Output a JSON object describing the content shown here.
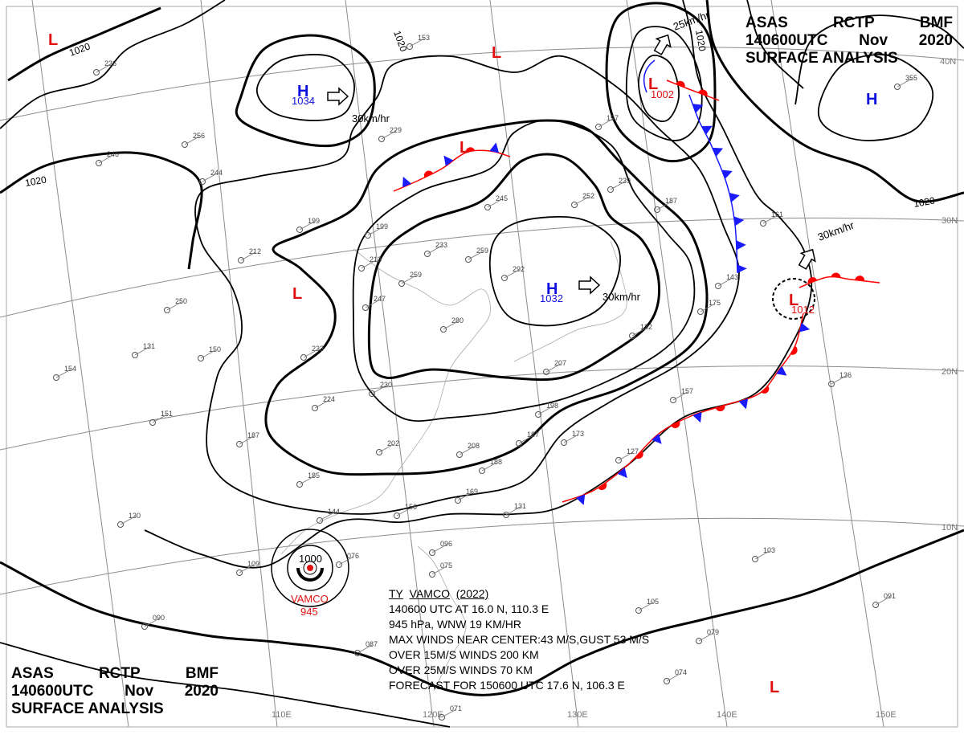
{
  "title": {
    "agency": "ASAS",
    "station": "RCTP",
    "office": "BMF",
    "time": "140600UTC",
    "month": "Nov",
    "year": "2020",
    "product": "SURFACE ANALYSIS"
  },
  "typhoon": {
    "name_line": [
      "TY",
      "VAMCO",
      "(2022)"
    ],
    "position_line": "140600 UTC  AT 16.0 N, 110.3 E",
    "pressure_line": "945 hPa, WNW 19 KM/HR",
    "max_winds_line": "MAX WINDS NEAR CENTER:43 M/S,GUST 53 M/S",
    "r15_line": "OVER 15M/S WINDS 200 KM",
    "r25_line": "OVER 25M/S WINDS 70 KM",
    "forecast_line": "FORECAST FOR 150600 UTC 17.6 N, 106.3 E",
    "map_label": "VAMCO",
    "map_pressure": "945",
    "isobar_label": "1000"
  },
  "pressure_centers": [
    {
      "type": "H",
      "value": "1034"
    },
    {
      "type": "H",
      "value": "1032"
    },
    {
      "type": "H",
      "value": ""
    },
    {
      "type": "L",
      "value": "1002"
    },
    {
      "type": "L",
      "value": "1012"
    },
    {
      "type": "L",
      "value": ""
    },
    {
      "type": "L",
      "value": ""
    },
    {
      "type": "L",
      "value": ""
    },
    {
      "type": "L",
      "value": ""
    },
    {
      "type": "L",
      "value": ""
    }
  ],
  "motion_labels": [
    "30km/hr",
    "30km/hr",
    "25km/hr",
    "30km/hr"
  ],
  "isobar_labels": [
    "1020",
    "1020",
    "1020",
    "1020",
    "1020"
  ],
  "latitude_labels": [
    "40N",
    "30N",
    "20N",
    "10N"
  ],
  "longitude_labels": [
    "110E",
    "120E",
    "130E",
    "140E",
    "150E"
  ],
  "station_pressures": [
    "153",
    "236",
    "229",
    "256",
    "246",
    "244",
    "199",
    "199",
    "212",
    "213",
    "233",
    "259",
    "259",
    "245",
    "252",
    "239",
    "187",
    "197",
    "250",
    "247",
    "280",
    "292",
    "131",
    "154",
    "151",
    "150",
    "233",
    "224",
    "230",
    "187",
    "202",
    "185",
    "208",
    "187",
    "173",
    "198",
    "188",
    "169",
    "156",
    "131",
    "144",
    "130",
    "109",
    "076",
    "096",
    "075",
    "090",
    "087",
    "071",
    "105",
    "079",
    "074",
    "103",
    "091",
    "136",
    "132",
    "175",
    "143",
    "161",
    "157",
    "127",
    "355",
    "207"
  ],
  "colors": {
    "high": "#1010e0",
    "low": "#e01010",
    "isobar": "#000000",
    "grid": "#8c8c8c",
    "cold_front": "#1a1aff",
    "warm_front": "#ff0000"
  }
}
